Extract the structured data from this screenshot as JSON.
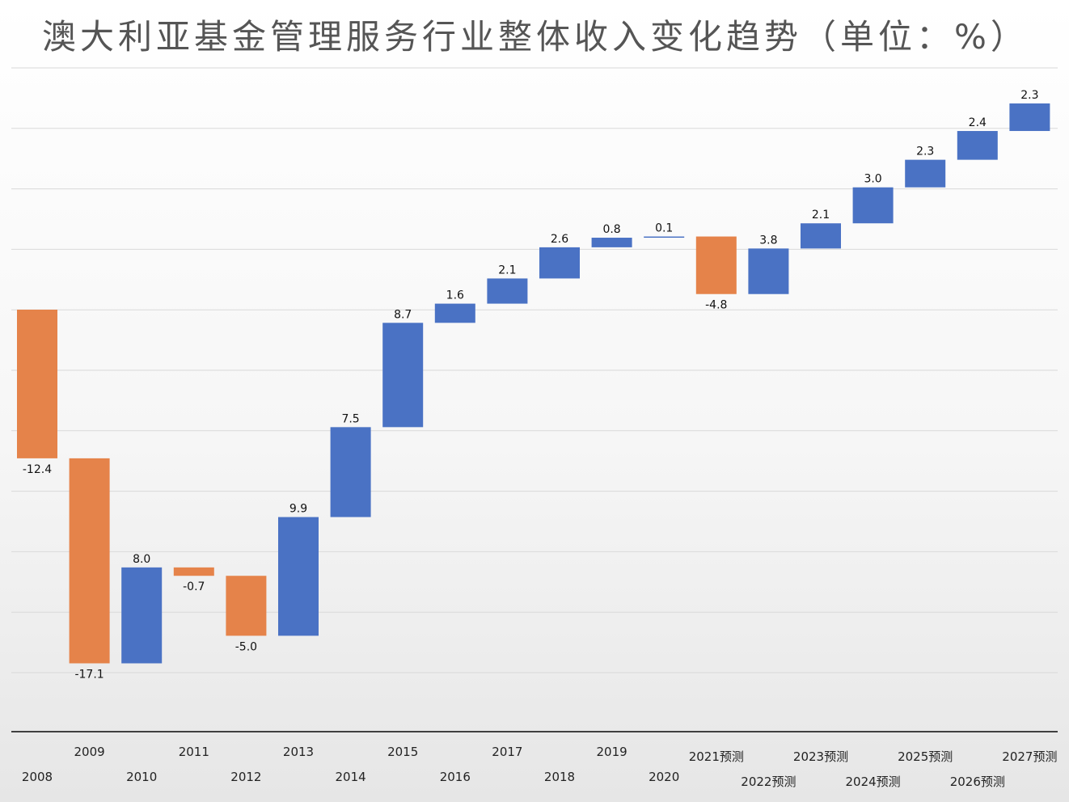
{
  "chart_data": {
    "type": "bar",
    "subtype": "waterfall",
    "title": "澳大利亚基金管理服务行业整体收入变化趋势（单位：%）",
    "categories": [
      "2008",
      "2009",
      "2010",
      "2011",
      "2012",
      "2013",
      "2014",
      "2015",
      "2016",
      "2017",
      "2018",
      "2019",
      "2020",
      "2021预测",
      "2022预测",
      "2023预测",
      "2024预测",
      "2025预测",
      "2026预测",
      "2027预测"
    ],
    "values": [
      -12.4,
      -17.1,
      8.0,
      -0.7,
      -5.0,
      9.9,
      7.5,
      8.7,
      1.6,
      2.1,
      2.6,
      0.8,
      0.1,
      -4.8,
      3.8,
      2.1,
      3.0,
      2.3,
      2.4,
      2.3
    ],
    "value_labels": [
      "-12.4",
      "-17.1",
      "8.0",
      "-0.7",
      "-5.0",
      "9.9",
      "7.5",
      "8.7",
      "1.6",
      "2.1",
      "2.6",
      "0.8",
      "0.1",
      "-4.8",
      "3.8",
      "2.1",
      "3.0",
      "2.3",
      "2.4",
      "2.3"
    ],
    "colors": {
      "increase": "#4a72c4",
      "decrease": "#e5834a"
    },
    "grid": true,
    "legend": "none"
  }
}
